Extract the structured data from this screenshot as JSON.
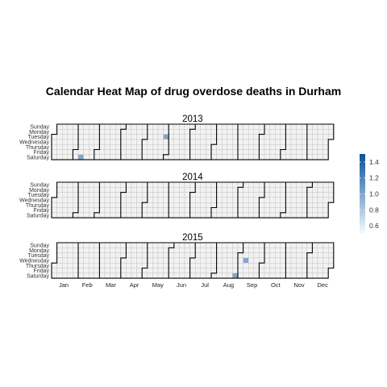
{
  "chart_data": {
    "type": "heatmap",
    "title": "Calendar Heat Map of drug overdose deaths in Durham",
    "years": [
      "2013",
      "2014",
      "2015"
    ],
    "day_labels": [
      "Sunday",
      "Monday",
      "Tuesday",
      "Wednesday",
      "Thursday",
      "Friday",
      "Saturday"
    ],
    "month_labels": [
      "Jan",
      "Feb",
      "Mar",
      "Apr",
      "May",
      "Jun",
      "Jul",
      "Aug",
      "Sep",
      "Oct",
      "Nov",
      "Dec"
    ],
    "values": [
      {
        "date": "2013-02-09",
        "value": 1.0
      },
      {
        "date": "2013-05-28",
        "value": 1.0
      },
      {
        "date": "2015-08-29",
        "value": 1.0
      },
      {
        "date": "2015-09-09",
        "value": 1.0
      }
    ],
    "colorbar": {
      "range": [
        0.5,
        1.5
      ],
      "ticks": [
        "0.6",
        "0.8",
        "1.0",
        "1.2",
        "1.4"
      ],
      "low_color": "#f7fbff",
      "high_color": "#08519c"
    },
    "grid": true,
    "legend_position": "right"
  }
}
